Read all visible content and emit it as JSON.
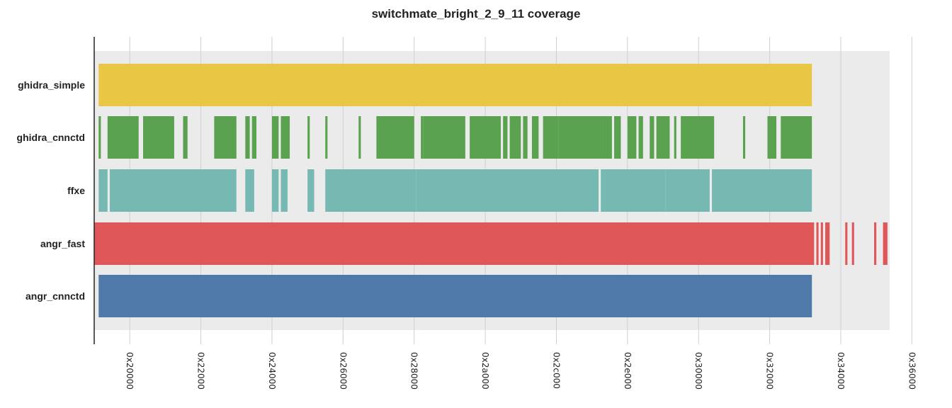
{
  "chart_data": {
    "type": "coverage",
    "title": "switchmate_bright_2_9_11 coverage",
    "x_ticks": [
      "0x20000",
      "0x22000",
      "0x24000",
      "0x26000",
      "0x28000",
      "0x2a000",
      "0x2c000",
      "0x2e000",
      "0x30000",
      "0x32000",
      "0x34000",
      "0x36000"
    ],
    "xlim": [
      "0x1f000",
      "0x35600"
    ],
    "grid": true,
    "series": [
      {
        "name": "ghidra_simple",
        "color": "#eac645",
        "ranges": [
          [
            "0x1f200",
            "0x33300"
          ]
        ]
      },
      {
        "name": "ghidra_cnnctd",
        "color": "#5aa150",
        "ranges": [
          [
            "0x1f200",
            "0x1f300"
          ],
          [
            "0x1f600",
            "0x20400"
          ],
          [
            "0x20600",
            "0x21400"
          ],
          [
            "0x21800",
            "0x21a00"
          ],
          [
            "0x22600",
            "0x23000"
          ],
          [
            "0x23400",
            "0x23600"
          ],
          [
            "0x23700",
            "0x23900"
          ],
          [
            "0x24000",
            "0x24300"
          ],
          [
            "0x24400",
            "0x24800"
          ],
          [
            "0x25000",
            "0x25100"
          ],
          [
            "0x25800",
            "0x25900"
          ],
          [
            "0x26700",
            "0x26800"
          ],
          [
            "0x26f00",
            "0x28000"
          ],
          [
            "0x28300",
            "0x28400"
          ],
          [
            "0x28400",
            "0x29700"
          ],
          [
            "0x29900",
            "0x2a700"
          ],
          [
            "0x2a800",
            "0x2aa00"
          ],
          [
            "0x2ab00",
            "0x2b000"
          ],
          [
            "0x2b100",
            "0x2b300"
          ],
          [
            "0x2b500",
            "0x2b800"
          ],
          [
            "0x2ba00",
            "0x2c100"
          ],
          [
            "0x2c100",
            "0x2d900"
          ],
          [
            "0x2da00",
            "0x2dd00"
          ],
          [
            "0x2e000",
            "0x2e400"
          ],
          [
            "0x2e500",
            "0x2e700"
          ],
          [
            "0x2ea00",
            "0x2ec00"
          ],
          [
            "0x2ed00",
            "0x2f300"
          ],
          [
            "0x2f500",
            "0x2f600"
          ],
          [
            "0x2f800",
            "0x30700"
          ],
          [
            "0x31400",
            "0x31500"
          ],
          [
            "0x31f00",
            "0x32300"
          ],
          [
            "0x32500",
            "0x33300"
          ]
        ]
      },
      {
        "name": "ffxe",
        "color": "#76b8b2",
        "ranges": [
          [
            "0x1f200",
            "0x1f600"
          ],
          [
            "0x1f700",
            "0x23000"
          ],
          [
            "0x23400",
            "0x23800"
          ],
          [
            "0x24000",
            "0x24300"
          ],
          [
            "0x24400",
            "0x24700"
          ],
          [
            "0x25000",
            "0x25300"
          ],
          [
            "0x25800",
            "0x28100"
          ],
          [
            "0x28100",
            "0x2d300"
          ],
          [
            "0x2d400",
            "0x2f100"
          ],
          [
            "0x2f100",
            "0x30500"
          ],
          [
            "0x30600",
            "0x33300"
          ]
        ]
      },
      {
        "name": "angr_fast",
        "color": "#e05759",
        "ranges": [
          [
            "0x1f000",
            "0x33400"
          ],
          [
            "0x33500",
            "0x33600"
          ],
          [
            "0x33700",
            "0x33800"
          ],
          [
            "0x33900",
            "0x33b00"
          ],
          [
            "0x34200",
            "0x34300"
          ],
          [
            "0x34500",
            "0x34600"
          ],
          [
            "0x34f00",
            "0x35000"
          ],
          [
            "0x35300",
            "0x35500"
          ]
        ]
      },
      {
        "name": "angr_cnnctd",
        "color": "#4f79a8",
        "ranges": [
          [
            "0x1f200",
            "0x33300"
          ]
        ]
      }
    ]
  }
}
